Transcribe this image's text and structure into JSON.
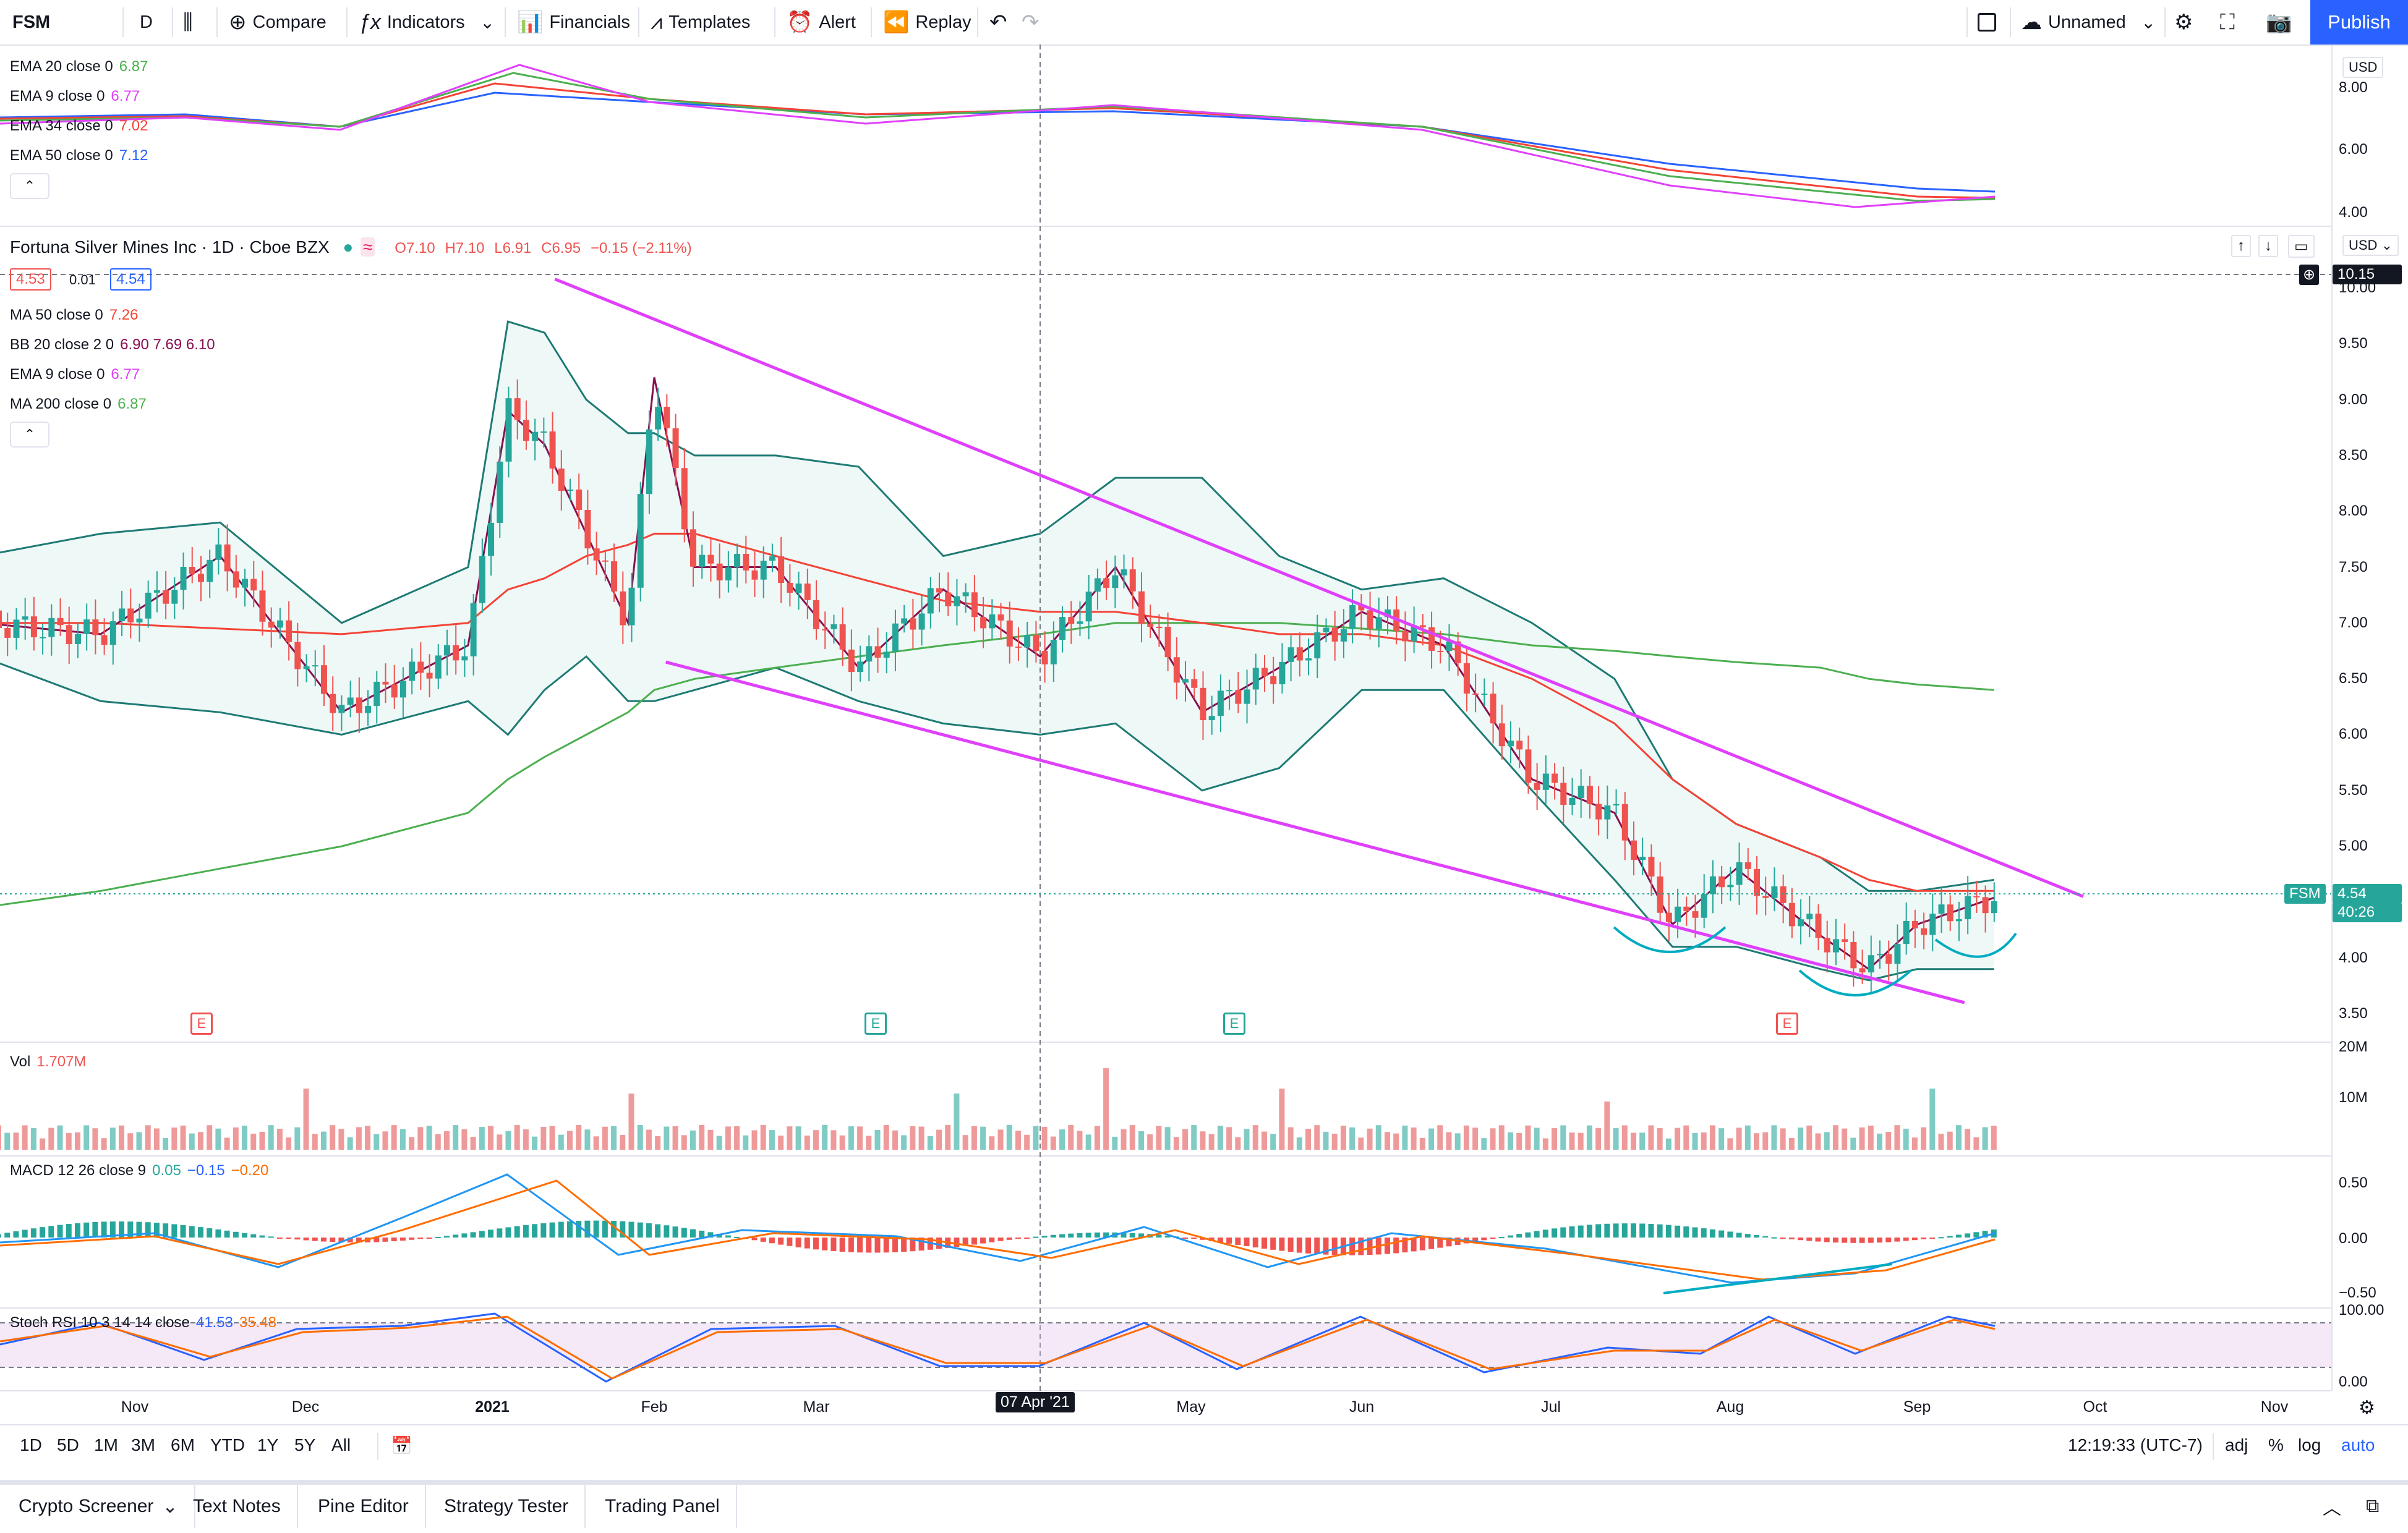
{
  "toolbar": {
    "symbol": "FSM",
    "interval": "D",
    "compare": "Compare",
    "indicators": "Indicators",
    "financials": "Financials",
    "templates": "Templates",
    "alert": "Alert",
    "replay": "Replay",
    "layout_name": "Unnamed",
    "publish": "Publish"
  },
  "ema_pane": {
    "legend": [
      {
        "label": "EMA 20 close 0",
        "value": "6.87",
        "color": "#4caf50"
      },
      {
        "label": "EMA 9 close 0",
        "value": "6.77",
        "color": "#e040fb"
      },
      {
        "label": "EMA 34 close 0",
        "value": "7.02",
        "color": "#f44336"
      },
      {
        "label": "EMA 50 close 0",
        "value": "7.12",
        "color": "#2962ff"
      }
    ],
    "axis_currency": "USD",
    "axis_ticks": [
      "8.00",
      "6.00",
      "4.00"
    ]
  },
  "main_pane": {
    "title": "Fortuna Silver Mines Inc · 1D · Cboe BZX",
    "ohlc": {
      "o": "O7.10",
      "h": "H7.10",
      "l": "L6.91",
      "c": "C6.95",
      "chg": "−0.15 (−2.11%)"
    },
    "bid": "4.53",
    "spread": "0.01",
    "ask": "4.54",
    "legend": [
      {
        "label": "MA 50 close 0",
        "value": "7.26",
        "color": "#f44336"
      },
      {
        "label": "BB 20 close 2 0",
        "value": "6.90  7.69  6.10",
        "color": "#880e4f"
      },
      {
        "label": "EMA 9 close 0",
        "value": "6.77",
        "color": "#e040fb"
      },
      {
        "label": "MA 200 close 0",
        "value": "6.87",
        "color": "#4caf50"
      }
    ],
    "axis_currency": "USD",
    "axis_ticks": [
      "10.00",
      "9.50",
      "9.00",
      "8.50",
      "8.00",
      "7.50",
      "7.00",
      "6.50",
      "6.00",
      "5.50",
      "5.00",
      "4.50",
      "4.00",
      "3.50"
    ],
    "crosshair_price": "10.15",
    "last_symbol": "FSM",
    "last_price": "4.54",
    "countdown": "40:26",
    "earnings_marker": "E"
  },
  "volume_pane": {
    "label": "Vol",
    "value": "1.707M",
    "axis_ticks": [
      "20M",
      "10M"
    ]
  },
  "macd_pane": {
    "label": "MACD 12 26 close 9",
    "values": [
      "0.05",
      "−0.15",
      "−0.20"
    ],
    "axis_ticks": [
      "0.50",
      "0.00",
      "−0.50"
    ]
  },
  "stoch_pane": {
    "label": "Stoch RSI 10 3 14 14 close",
    "values": [
      "41.53",
      "35.48"
    ],
    "axis_ticks": [
      "100.00",
      "0.00"
    ]
  },
  "time_axis": {
    "labels": [
      "Nov",
      "Dec",
      "2021",
      "Feb",
      "Mar",
      "May",
      "Jun",
      "Jul",
      "Aug",
      "Sep",
      "Oct",
      "Nov"
    ],
    "crosshair_date": "07 Apr '21"
  },
  "range_bar": {
    "ranges": [
      "1D",
      "5D",
      "1M",
      "3M",
      "6M",
      "YTD",
      "1Y",
      "5Y",
      "All"
    ],
    "clock": "12:19:33 (UTC-7)",
    "adj": "adj",
    "percent": "%",
    "log": "log",
    "auto": "auto"
  },
  "bottom_tabs": [
    "Crypto Screener",
    "Text Notes",
    "Pine Editor",
    "Strategy Tester",
    "Trading Panel"
  ],
  "chart_data": {
    "type": "line",
    "ylim": [
      3.3,
      10.3
    ],
    "x": [
      "2020-10-05",
      "2020-10-26",
      "2020-11-16",
      "2020-12-07",
      "2020-12-28",
      "2021-01-04",
      "2021-01-11",
      "2021-01-19",
      "2021-01-27",
      "2021-02-01",
      "2021-02-08",
      "2021-02-22",
      "2021-03-08",
      "2021-03-22",
      "2021-04-07",
      "2021-04-19",
      "2021-05-03",
      "2021-05-17",
      "2021-06-01",
      "2021-06-14",
      "2021-06-28",
      "2021-07-12",
      "2021-07-22",
      "2021-08-02",
      "2021-08-16",
      "2021-08-24",
      "2021-09-01",
      "2021-09-14"
    ],
    "series": [
      {
        "name": "Close",
        "values": [
          7.0,
          6.9,
          7.6,
          6.2,
          6.8,
          8.9,
          8.6,
          7.8,
          7.0,
          9.2,
          7.5,
          7.5,
          6.6,
          7.3,
          6.7,
          7.5,
          6.2,
          6.6,
          7.1,
          6.8,
          5.6,
          5.3,
          4.3,
          4.8,
          4.2,
          3.9,
          4.3,
          4.54
        ]
      },
      {
        "name": "MA 50",
        "values": [
          7.0,
          7.0,
          6.95,
          6.9,
          7.0,
          7.3,
          7.4,
          7.6,
          7.7,
          7.8,
          7.8,
          7.6,
          7.4,
          7.2,
          7.1,
          7.1,
          7.0,
          6.9,
          6.9,
          6.8,
          6.5,
          6.1,
          5.6,
          5.2,
          4.9,
          4.7,
          4.6,
          4.6
        ]
      },
      {
        "name": "MA 200",
        "values": [
          4.45,
          4.6,
          4.8,
          5.0,
          5.3,
          5.6,
          5.8,
          6.0,
          6.2,
          6.4,
          6.5,
          6.6,
          6.7,
          6.8,
          6.9,
          7.0,
          7.0,
          7.0,
          6.95,
          6.9,
          6.8,
          6.75,
          6.7,
          6.65,
          6.6,
          6.5,
          6.45,
          6.4
        ]
      },
      {
        "name": "BB Upper",
        "values": [
          7.6,
          7.8,
          7.9,
          7.0,
          7.5,
          9.7,
          9.6,
          9.0,
          8.7,
          8.7,
          8.5,
          8.5,
          8.4,
          7.6,
          7.8,
          8.3,
          8.3,
          7.6,
          7.3,
          7.4,
          7.0,
          6.5,
          5.6,
          5.2,
          4.9,
          4.6,
          4.6,
          4.7
        ]
      },
      {
        "name": "BB Lower",
        "values": [
          6.7,
          6.3,
          6.2,
          6.0,
          6.3,
          6.0,
          6.4,
          6.7,
          6.3,
          6.3,
          6.4,
          6.6,
          6.3,
          6.1,
          6.0,
          6.1,
          5.5,
          5.7,
          6.4,
          6.4,
          5.5,
          4.7,
          4.1,
          4.1,
          3.9,
          3.8,
          3.9,
          3.9
        ]
      }
    ],
    "trendlines": [
      {
        "name": "upper",
        "x": [
          "2021-01-13",
          "2021-09-29"
        ],
        "y": [
          10.08,
          4.55
        ]
      },
      {
        "name": "lower",
        "x": [
          "2021-02-03",
          "2021-09-09"
        ],
        "y": [
          6.65,
          3.6
        ]
      }
    ],
    "legend": "top-left"
  }
}
